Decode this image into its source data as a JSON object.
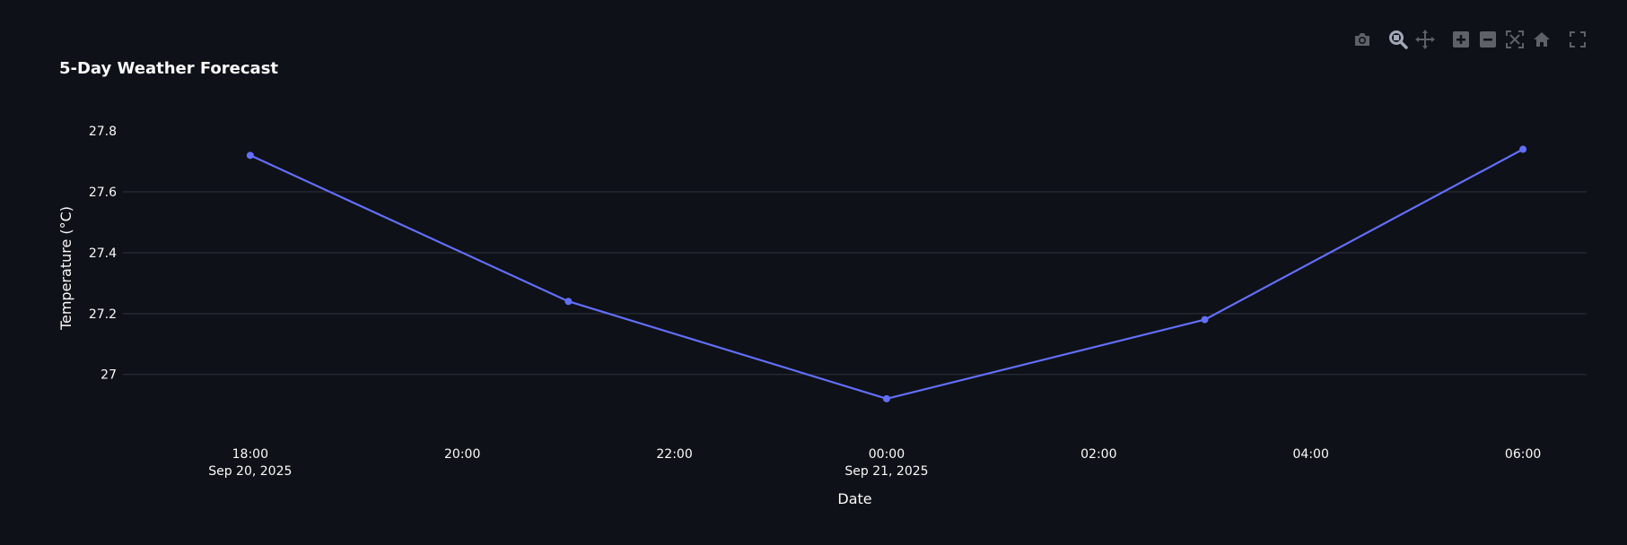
{
  "chart_data": {
    "type": "line",
    "title": "5-Day Weather Forecast",
    "xlabel": "Date",
    "ylabel": "Temperature (°C)",
    "x": [
      "2025-09-20 18:00",
      "2025-09-20 21:00",
      "2025-09-21 00:00",
      "2025-09-21 03:00",
      "2025-09-21 06:00"
    ],
    "series": [
      {
        "values": [
          27.72,
          27.24,
          26.92,
          27.18,
          27.74
        ],
        "color": "#636efa"
      }
    ],
    "x_ticks": [
      {
        "value": "2025-09-20 18:00",
        "label": "18:00",
        "sublabel": "Sep 20, 2025"
      },
      {
        "value": "2025-09-20 20:00",
        "label": "20:00",
        "sublabel": ""
      },
      {
        "value": "2025-09-20 22:00",
        "label": "22:00",
        "sublabel": ""
      },
      {
        "value": "2025-09-21 00:00",
        "label": "00:00",
        "sublabel": "Sep 21, 2025"
      },
      {
        "value": "2025-09-21 02:00",
        "label": "02:00",
        "sublabel": ""
      },
      {
        "value": "2025-09-21 04:00",
        "label": "04:00",
        "sublabel": ""
      },
      {
        "value": "2025-09-21 06:00",
        "label": "06:00",
        "sublabel": ""
      }
    ],
    "y_ticks": [
      27,
      27.2,
      27.4,
      27.6,
      27.8
    ],
    "y_tick_labels": [
      "27",
      "27.2",
      "27.4",
      "27.6",
      "27.8"
    ],
    "ylim": [
      26.84,
      27.83
    ],
    "xlim": [
      "2025-09-20 16:48",
      "2025-09-21 06:36"
    ],
    "grid": true,
    "legend": false
  },
  "colors": {
    "background": "#0e1117",
    "grid": "#31333f",
    "text": "#fafafa",
    "line": "#636efa",
    "modebar_icon": "#5f6168",
    "modebar_icon_active": "#a3a8b8"
  },
  "modebar": {
    "buttons": [
      {
        "name": "camera-icon",
        "active": false
      },
      {
        "name": "zoom-icon",
        "active": true
      },
      {
        "name": "pan-icon",
        "active": false
      },
      {
        "name": "zoom-in-icon",
        "active": false
      },
      {
        "name": "zoom-out-icon",
        "active": false
      },
      {
        "name": "autoscale-icon",
        "active": false
      },
      {
        "name": "reset-axes-icon",
        "active": false
      },
      {
        "name": "fullscreen-icon",
        "active": false
      }
    ]
  }
}
